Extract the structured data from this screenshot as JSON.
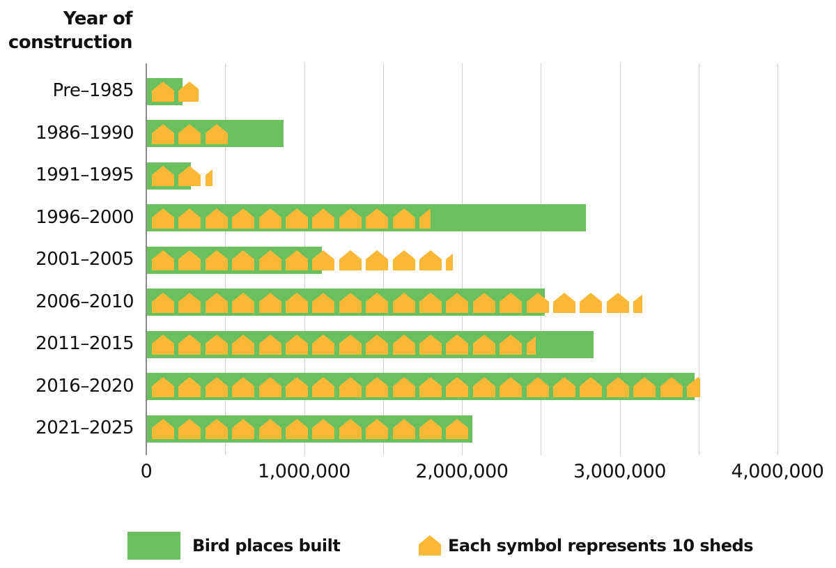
{
  "colors": {
    "bar": "#6abf5e",
    "symbol": "#fbb836",
    "axis": "#8a8a8a",
    "grid": "#cfcfcf"
  },
  "axis": {
    "y_title_line1": "Year of",
    "y_title_line2": "construction",
    "x_ticks": [
      {
        "value": 0,
        "label": "0"
      },
      {
        "value": 1000000,
        "label": "1,000,000"
      },
      {
        "value": 2000000,
        "label": "2,000,000"
      },
      {
        "value": 3000000,
        "label": "3,000,000"
      },
      {
        "value": 4000000,
        "label": "4,000,000"
      }
    ],
    "gridline_step": 500000
  },
  "legend": {
    "bar_label": "Bird places built",
    "symbol_label": "Each symbol represents 10 sheds"
  },
  "chart_data": {
    "type": "bar",
    "orientation": "horizontal",
    "title": "",
    "ylabel": "Year of construction",
    "xlabel": "",
    "xlim": [
      0,
      4000000
    ],
    "grid": true,
    "legend_position": "bottom",
    "categories": [
      "Pre-1985",
      "1986-1990",
      "1991-1995",
      "1996-2000",
      "2001-2005",
      "2006-2010",
      "2011-2015",
      "2016-2020",
      "2021-2025"
    ],
    "series": [
      {
        "name": "Bird places built",
        "type": "bar",
        "values": [
          225000,
          865000,
          280000,
          2780000,
          1110000,
          2520000,
          2830000,
          3470000,
          2060000
        ]
      },
      {
        "name": "Sheds (each symbol represents 10 sheds)",
        "type": "pictogram",
        "unit": 10,
        "values": [
          19,
          30,
          23,
          105,
          113,
          184,
          144,
          206,
          120
        ]
      }
    ]
  }
}
